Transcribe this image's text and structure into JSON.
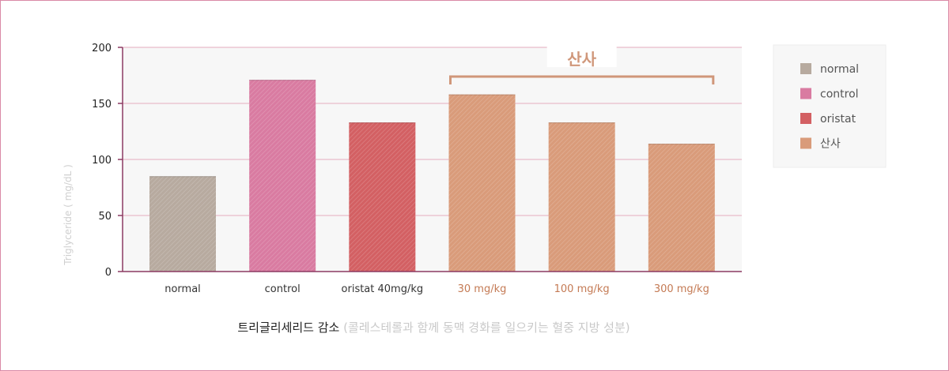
{
  "chart_data": {
    "type": "bar",
    "ylabel": "Triglyceride ( mg/dL )",
    "ylim": [
      0,
      200
    ],
    "yticks": [
      0,
      50,
      100,
      150,
      200
    ],
    "categories": [
      "normal",
      "control",
      "oristat 40mg/kg",
      "30 mg/kg",
      "100 mg/kg",
      "300 mg/kg"
    ],
    "values": [
      85,
      171,
      133,
      158,
      133,
      114
    ],
    "bar_groups": [
      "normal",
      "control",
      "oristat",
      "산사",
      "산사",
      "산사"
    ],
    "bracket_label": "산사",
    "grid": true,
    "legend_placement": "right",
    "legend": [
      {
        "label": "normal",
        "color": "#b7aa9f"
      },
      {
        "label": "control",
        "color": "#d97ba1"
      },
      {
        "label": "oristat",
        "color": "#d36063"
      },
      {
        "label": "산사",
        "color": "#d99b7a"
      }
    ],
    "tick_colors": {
      "default": "#333333",
      "highlight": "#c47a54"
    }
  },
  "caption": {
    "main": "트리글리세리드 감소",
    "sub": "(콜레스테롤과 함께 동맥 경화를 일으키는 혈중 지방 성분)"
  }
}
